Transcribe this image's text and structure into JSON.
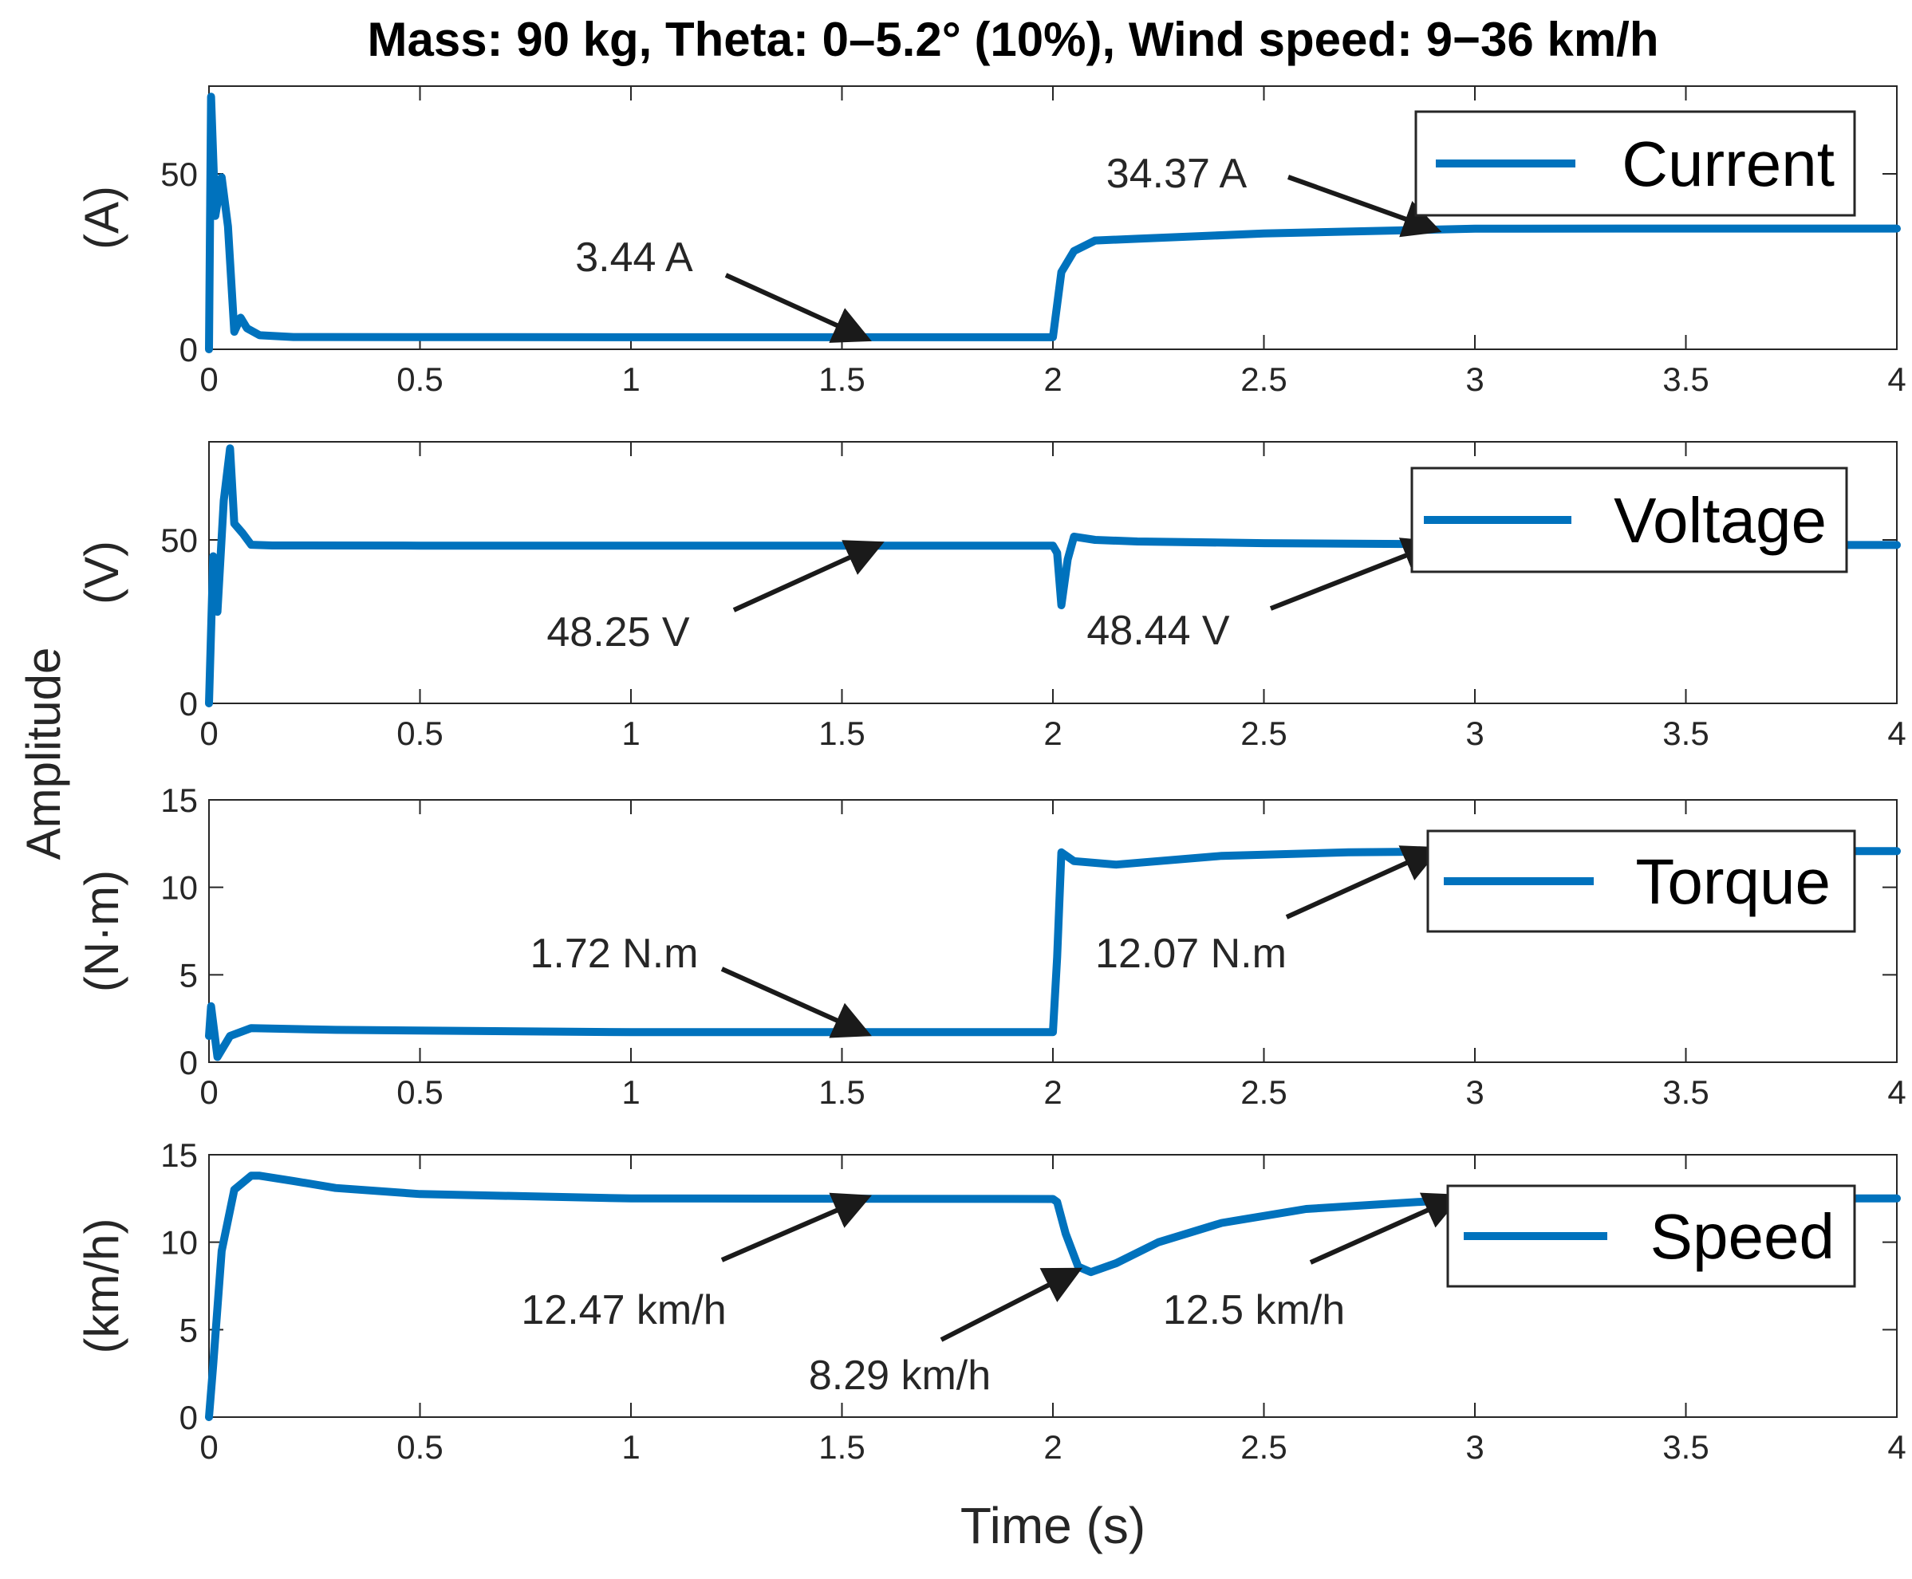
{
  "chart_data": {
    "title": "Mass: 90 kg, Theta: 0–5.2° (10%), Wind speed: 9−36 km/h",
    "xlabel": "Time (s)",
    "shared_ylabel": "Amplitude",
    "line_color": "#0072BD",
    "arrow_color": "#1a1a1a",
    "xlim": [
      0,
      4
    ],
    "xticks": [
      "0",
      "0.5",
      "1",
      "1.5",
      "2",
      "2.5",
      "3",
      "3.5",
      "4"
    ],
    "panels": [
      {
        "type": "line",
        "name": "current",
        "ylabel": "(A)",
        "ylim": [
          0,
          75
        ],
        "yticks": [
          0,
          50
        ],
        "ytick_labels": [
          "0",
          "50"
        ],
        "legend": "Current",
        "legend_position": "top-right",
        "series": [
          {
            "name": "Current",
            "x": [
              0,
              0.005,
              0.015,
              0.03,
              0.045,
              0.06,
              0.075,
              0.09,
              0.12,
              0.2,
              1,
              2,
              2.02,
              2.05,
              2.1,
              2.2,
              2.5,
              3,
              3.5,
              4
            ],
            "y": [
              0,
              72,
              38,
              49,
              35,
              5,
              9,
              6,
              4,
              3.5,
              3.44,
              3.44,
              22,
              28,
              31,
              31.5,
              33,
              34.37,
              34.4,
              34.4
            ]
          }
        ],
        "annotations": [
          {
            "text": "3.44 A",
            "x": 1.55,
            "y": 3.44
          },
          {
            "text": "34.37 A",
            "x": 2.9,
            "y": 34.37
          }
        ]
      },
      {
        "type": "line",
        "name": "voltage",
        "ylabel": "(V)",
        "ylim": [
          0,
          80
        ],
        "yticks": [
          0,
          50
        ],
        "ytick_labels": [
          "0",
          "50"
        ],
        "legend": "Voltage",
        "legend_position": "top-right",
        "series": [
          {
            "name": "Voltage",
            "x": [
              0,
              0.01,
              0.02,
              0.035,
              0.05,
              0.06,
              0.08,
              0.1,
              0.15,
              0.5,
              1,
              2,
              2.01,
              2.02,
              2.035,
              2.05,
              2.1,
              2.2,
              2.5,
              3,
              3.5,
              4
            ],
            "y": [
              0,
              45,
              28,
              62,
              78,
              55,
              52,
              48.5,
              48.3,
              48.25,
              48.25,
              48.25,
              46,
              30,
              44,
              51,
              50,
              49.5,
              49,
              48.6,
              48.44,
              48.44
            ]
          }
        ],
        "annotations": [
          {
            "text": "48.25 V",
            "x": 1.58,
            "y": 48.25
          },
          {
            "text": "48.44 V",
            "x": 2.9,
            "y": 48.44
          }
        ]
      },
      {
        "type": "line",
        "name": "torque",
        "ylabel": "(N·m)",
        "ylim": [
          0,
          15
        ],
        "yticks": [
          0,
          5,
          10,
          15
        ],
        "ytick_labels": [
          "0",
          "5",
          "10",
          "15"
        ],
        "legend": "Torque",
        "legend_position": "top-right",
        "series": [
          {
            "name": "Torque",
            "x": [
              0,
              0.005,
              0.02,
              0.05,
              0.1,
              0.3,
              1,
              2,
              2.01,
              2.02,
              2.05,
              2.15,
              2.4,
              2.7,
              3,
              3.5,
              4
            ],
            "y": [
              1.5,
              3.2,
              0.3,
              1.5,
              1.95,
              1.85,
              1.72,
              1.72,
              6,
              12,
              11.5,
              11.3,
              11.8,
              12,
              12.07,
              12.07,
              12.07
            ]
          }
        ],
        "annotations": [
          {
            "text": "1.72 N.m",
            "x": 1.55,
            "y": 1.72
          },
          {
            "text": "12.07 N.m",
            "x": 2.9,
            "y": 12.07
          }
        ]
      },
      {
        "type": "line",
        "name": "speed",
        "ylabel": "(km/h)",
        "ylim": [
          0,
          15
        ],
        "yticks": [
          0,
          5,
          10,
          15
        ],
        "ytick_labels": [
          "0",
          "5",
          "10",
          "15"
        ],
        "legend": "Speed",
        "legend_position": "top-right",
        "series": [
          {
            "name": "Speed",
            "x": [
              0,
              0.01,
              0.03,
              0.06,
              0.1,
              0.12,
              0.2,
              0.3,
              0.5,
              1,
              2,
              2.01,
              2.03,
              2.06,
              2.09,
              2.15,
              2.25,
              2.4,
              2.6,
              2.9,
              3.2,
              4
            ],
            "y": [
              0,
              3,
              9.5,
              13,
              13.8,
              13.8,
              13.5,
              13.1,
              12.75,
              12.5,
              12.47,
              12.3,
              10.5,
              8.6,
              8.29,
              8.8,
              10,
              11.1,
              11.9,
              12.35,
              12.5,
              12.5
            ]
          }
        ],
        "annotations": [
          {
            "text": "12.47 km/h",
            "x": 1.55,
            "y": 12.47
          },
          {
            "text": "8.29 km/h",
            "x": 2.05,
            "y": 8.29
          },
          {
            "text": "12.5 km/h",
            "x": 2.95,
            "y": 12.5
          }
        ]
      }
    ]
  }
}
